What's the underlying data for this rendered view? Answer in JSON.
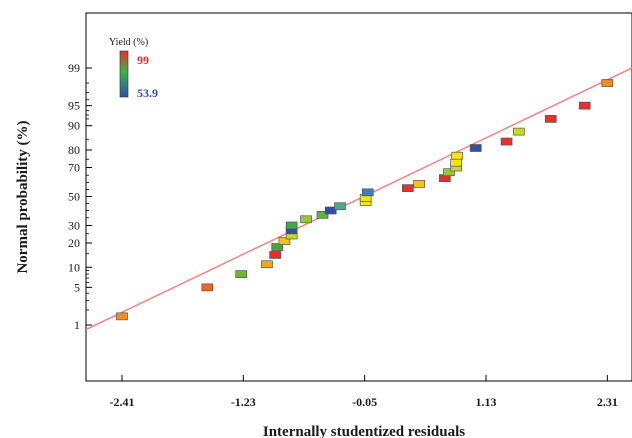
{
  "chart_data": {
    "type": "scatter",
    "xlabel": "Internally studentized residuals",
    "ylabel": "Normal probability  (%)",
    "x_ticks": [
      "-2.41",
      "-1.23",
      "-0.05",
      "1.13",
      "2.31"
    ],
    "y_ticks": [
      "1",
      "5",
      "10",
      "20",
      "30",
      "50",
      "70",
      "80",
      "90",
      "95",
      "99"
    ],
    "xlim": [
      -2.76,
      2.55
    ],
    "legend": {
      "title": "Yield (%)",
      "max_label": "99",
      "min_label": "53.9",
      "max_color": "#e53030",
      "min_color": "#2f4fa8",
      "placement": "top-left"
    },
    "fit_line": {
      "x": [
        -2.76,
        2.55
      ],
      "y": [
        0.8,
        99.0
      ],
      "color": "#f08a8a"
    },
    "points": [
      {
        "x": -2.41,
        "y": 1.5,
        "color": "#f28c28"
      },
      {
        "x": -1.58,
        "y": 5.0,
        "color": "#f06423"
      },
      {
        "x": -1.25,
        "y": 8.0,
        "color": "#6fb62f"
      },
      {
        "x": -1.0,
        "y": 11.0,
        "color": "#f2a81d"
      },
      {
        "x": -0.92,
        "y": 14.5,
        "color": "#e53030"
      },
      {
        "x": -0.9,
        "y": 18.0,
        "color": "#45a83a"
      },
      {
        "x": -0.83,
        "y": 21.0,
        "color": "#f2c21b"
      },
      {
        "x": -0.76,
        "y": 24.0,
        "color": "#c9d72a"
      },
      {
        "x": -0.76,
        "y": 27.0,
        "color": "#2f4fa8"
      },
      {
        "x": -0.76,
        "y": 30.0,
        "color": "#3fa84b"
      },
      {
        "x": -0.62,
        "y": 34.0,
        "color": "#98c83a"
      },
      {
        "x": -0.46,
        "y": 37.0,
        "color": "#5fb04a"
      },
      {
        "x": -0.38,
        "y": 40.0,
        "color": "#2f4fa8"
      },
      {
        "x": -0.29,
        "y": 43.0,
        "color": "#4ea88a"
      },
      {
        "x": -0.04,
        "y": 46.0,
        "color": "#f3e21d"
      },
      {
        "x": -0.04,
        "y": 49.0,
        "color": "#f3e21d"
      },
      {
        "x": -0.02,
        "y": 53.0,
        "color": "#3a7fc0"
      },
      {
        "x": 0.37,
        "y": 56.0,
        "color": "#e53030"
      },
      {
        "x": 0.48,
        "y": 59.0,
        "color": "#f2c21b"
      },
      {
        "x": 0.73,
        "y": 63.0,
        "color": "#e53030"
      },
      {
        "x": 0.77,
        "y": 67.0,
        "color": "#98c83a"
      },
      {
        "x": 0.84,
        "y": 70.0,
        "color": "#c9d72a"
      },
      {
        "x": 0.84,
        "y": 73.0,
        "color": "#f3e21d"
      },
      {
        "x": 0.85,
        "y": 77.0,
        "color": "#f3e21d"
      },
      {
        "x": 1.03,
        "y": 81.0,
        "color": "#2f4fa8"
      },
      {
        "x": 1.33,
        "y": 84.0,
        "color": "#e53030"
      },
      {
        "x": 1.45,
        "y": 88.0,
        "color": "#c9d72a"
      },
      {
        "x": 1.76,
        "y": 92.0,
        "color": "#e53030"
      },
      {
        "x": 2.09,
        "y": 95.0,
        "color": "#e53030"
      },
      {
        "x": 2.31,
        "y": 98.0,
        "color": "#f28c28"
      }
    ]
  }
}
